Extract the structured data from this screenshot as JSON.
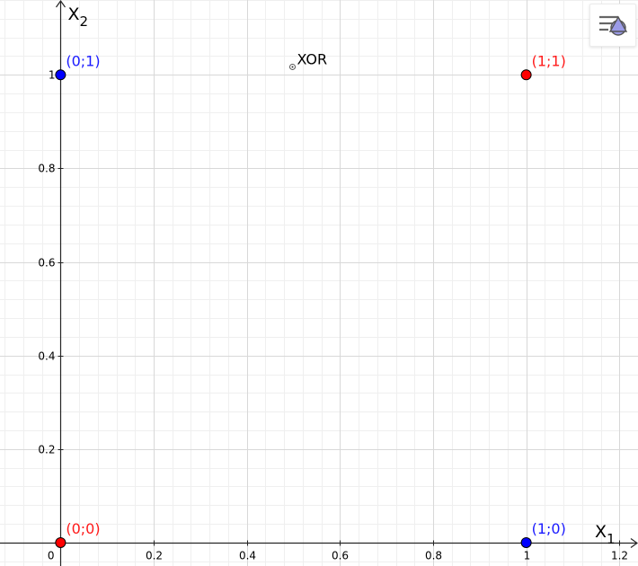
{
  "app": {
    "style_bar_icon": "graphics-style-bar-icon"
  },
  "colors": {
    "background": "#ffffff",
    "major_grid": "#d8d8d8",
    "minor_grid": "#efefef",
    "axis": "#252525",
    "point_blue": "#0000ff",
    "point_red": "#ff0000",
    "label_blue": "#1a1aff",
    "label_red": "#ff1a1a",
    "label_dark": "#000000",
    "icon_purple": "#9b9be8"
  },
  "chart_data": {
    "type": "scatter",
    "axes": {
      "x_label_base": "X",
      "x_label_sub": "1",
      "y_label_base": "X",
      "y_label_sub": "2",
      "origin_label": "0",
      "xlim": [
        -0.13,
        1.24
      ],
      "ylim": [
        -0.05,
        1.16
      ],
      "x_ticks": [
        {
          "value": 0.2,
          "label": "0.2"
        },
        {
          "value": 0.4,
          "label": "0.4"
        },
        {
          "value": 0.6,
          "label": "0.6"
        },
        {
          "value": 0.8,
          "label": "0.8"
        },
        {
          "value": 1.0,
          "label": "1"
        },
        {
          "value": 1.2,
          "label": "1.2"
        }
      ],
      "y_ticks": [
        {
          "value": 0.2,
          "label": "0.2"
        },
        {
          "value": 0.4,
          "label": "0.4"
        },
        {
          "value": 0.6,
          "label": "0.6"
        },
        {
          "value": 0.8,
          "label": "0.8"
        },
        {
          "value": 1.0,
          "label": "1"
        }
      ],
      "major_step": 0.2,
      "minor_step": 0.04,
      "grid": true
    },
    "points": [
      {
        "x": 0,
        "y": 1,
        "label": "(0;1)",
        "color": "blue"
      },
      {
        "x": 1,
        "y": 1,
        "label": "(1;1)",
        "color": "red"
      },
      {
        "x": 0,
        "y": 0,
        "label": "(0;0)",
        "color": "red"
      },
      {
        "x": 1,
        "y": 0,
        "label": "(1;0)",
        "color": "blue"
      }
    ],
    "annotation": {
      "text": "XOR",
      "x": 0.5,
      "y": 1.017
    }
  }
}
